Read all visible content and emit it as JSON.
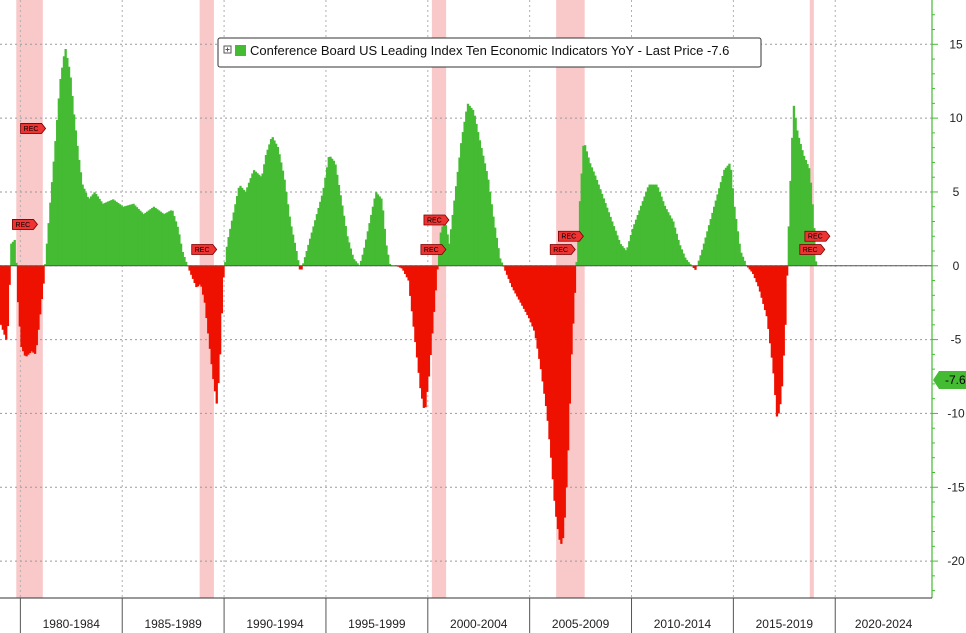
{
  "chart_data": {
    "type": "bar",
    "title": "",
    "legend": {
      "text": "Conference Board US Leading Index Ten Economic Indicators YoY - Last Price -7.6",
      "placement": "top-center"
    },
    "last_price_label": "-7.6",
    "ylim": [
      -22.5,
      18
    ],
    "y_ticks": [
      {
        "value": 15,
        "label": "15"
      },
      {
        "value": 10,
        "label": "10"
      },
      {
        "value": 5,
        "label": "5"
      },
      {
        "value": 0,
        "label": "0"
      },
      {
        "value": -5,
        "label": "-5"
      },
      {
        "value": -10,
        "label": "-10"
      },
      {
        "value": -15,
        "label": "-15"
      },
      {
        "value": -20,
        "label": "-20"
      }
    ],
    "xlim": [
      1979.0,
      2024.75
    ],
    "x_periods": [
      {
        "label": "1980-1984",
        "start": 1980,
        "end": 1985
      },
      {
        "label": "1985-1989",
        "start": 1985,
        "end": 1990
      },
      {
        "label": "1990-1994",
        "start": 1990,
        "end": 1995
      },
      {
        "label": "1995-1999",
        "start": 1995,
        "end": 2000
      },
      {
        "label": "2000-2004",
        "start": 2000,
        "end": 2005
      },
      {
        "label": "2005-2009",
        "start": 2005,
        "end": 2010
      },
      {
        "label": "2010-2014",
        "start": 2010,
        "end": 2015
      },
      {
        "label": "2015-2019",
        "start": 2015,
        "end": 2020
      },
      {
        "label": "2020-2024",
        "start": 2020,
        "end": 2025
      }
    ],
    "recessions": [
      {
        "start": 1979.8,
        "end": 1981.1
      },
      {
        "start": 1988.8,
        "end": 1989.5
      },
      {
        "start": 2000.2,
        "end": 2000.9
      },
      {
        "start": 2006.3,
        "end": 2007.7
      },
      {
        "start": 2018.75,
        "end": 2018.95
      }
    ],
    "rec_markers": [
      {
        "x": 1980.6,
        "y": 9.3,
        "label": "REC"
      },
      {
        "x": 1980.2,
        "y": 2.8,
        "label": "REC"
      },
      {
        "x": 1989.0,
        "y": 1.1,
        "label": "REC"
      },
      {
        "x": 2000.4,
        "y": 3.1,
        "label": "REC"
      },
      {
        "x": 2000.25,
        "y": 1.1,
        "label": "REC"
      },
      {
        "x": 2007.0,
        "y": 2.0,
        "label": "REC"
      },
      {
        "x": 2006.6,
        "y": 1.1,
        "label": "REC"
      },
      {
        "x": 2019.1,
        "y": 2.0,
        "label": "REC"
      },
      {
        "x": 2018.85,
        "y": 1.1,
        "label": "REC"
      }
    ],
    "series": [
      {
        "name": "Conference Board US Leading Index Ten Economic Indicators YoY",
        "positive_color": "#44bb33",
        "negative_color": "#ee1100",
        "points": [
          [
            1979.0,
            -4.0
          ],
          [
            1979.3,
            -5.2
          ],
          [
            1979.5,
            1.5
          ],
          [
            1979.7,
            1.8
          ],
          [
            1979.85,
            -3.0
          ],
          [
            1980.0,
            -5.5
          ],
          [
            1980.2,
            -6.2
          ],
          [
            1980.5,
            -5.8
          ],
          [
            1980.7,
            -6.0
          ],
          [
            1980.9,
            -3.5
          ],
          [
            1981.1,
            -1.0
          ],
          [
            1981.4,
            4.0
          ],
          [
            1981.7,
            9.0
          ],
          [
            1981.9,
            12.5
          ],
          [
            1982.15,
            14.8
          ],
          [
            1982.4,
            13.0
          ],
          [
            1982.6,
            10.0
          ],
          [
            1982.8,
            7.5
          ],
          [
            1983.0,
            5.5
          ],
          [
            1983.3,
            4.5
          ],
          [
            1983.6,
            5.0
          ],
          [
            1984.0,
            4.2
          ],
          [
            1984.5,
            4.5
          ],
          [
            1985.0,
            4.0
          ],
          [
            1985.5,
            4.2
          ],
          [
            1986.0,
            3.5
          ],
          [
            1986.5,
            4.0
          ],
          [
            1987.0,
            3.5
          ],
          [
            1987.4,
            3.8
          ],
          [
            1987.7,
            2.5
          ],
          [
            1987.9,
            1.0
          ],
          [
            1988.1,
            0.2
          ],
          [
            1988.3,
            -0.5
          ],
          [
            1988.6,
            -1.5
          ],
          [
            1988.8,
            -1.2
          ],
          [
            1989.0,
            -2.5
          ],
          [
            1989.2,
            -5.0
          ],
          [
            1989.4,
            -7.5
          ],
          [
            1989.6,
            -9.5
          ],
          [
            1989.75,
            -6.0
          ],
          [
            1989.9,
            -1.0
          ],
          [
            1990.1,
            1.5
          ],
          [
            1990.4,
            3.5
          ],
          [
            1990.7,
            5.5
          ],
          [
            1991.0,
            5.0
          ],
          [
            1991.4,
            6.5
          ],
          [
            1991.8,
            6.0
          ],
          [
            1992.0,
            7.5
          ],
          [
            1992.3,
            8.8
          ],
          [
            1992.6,
            8.0
          ],
          [
            1992.9,
            6.0
          ],
          [
            1993.2,
            3.0
          ],
          [
            1993.5,
            1.0
          ],
          [
            1993.7,
            -0.5
          ],
          [
            1994.0,
            1.0
          ],
          [
            1994.4,
            3.0
          ],
          [
            1994.8,
            5.0
          ],
          [
            1995.1,
            7.5
          ],
          [
            1995.4,
            7.0
          ],
          [
            1995.7,
            4.5
          ],
          [
            1996.0,
            2.0
          ],
          [
            1996.3,
            0.5
          ],
          [
            1996.6,
            0.0
          ],
          [
            1996.8,
            1.0
          ],
          [
            1997.1,
            3.0
          ],
          [
            1997.4,
            5.0
          ],
          [
            1997.7,
            4.5
          ],
          [
            1997.9,
            1.5
          ],
          [
            1998.1,
            0.0
          ],
          [
            1998.4,
            0.0
          ],
          [
            1998.7,
            -0.2
          ],
          [
            1999.0,
            -1.0
          ],
          [
            1999.2,
            -3.5
          ],
          [
            1999.4,
            -6.0
          ],
          [
            1999.6,
            -8.5
          ],
          [
            1999.8,
            -10.0
          ],
          [
            2000.0,
            -7.5
          ],
          [
            2000.2,
            -4.0
          ],
          [
            2000.4,
            -0.5
          ],
          [
            2000.6,
            2.5
          ],
          [
            2000.8,
            3.0
          ],
          [
            2001.0,
            1.5
          ],
          [
            2001.3,
            5.0
          ],
          [
            2001.6,
            8.5
          ],
          [
            2001.9,
            11.0
          ],
          [
            2002.2,
            10.5
          ],
          [
            2002.5,
            8.5
          ],
          [
            2002.9,
            6.0
          ],
          [
            2003.2,
            3.0
          ],
          [
            2003.5,
            0.5
          ],
          [
            2003.8,
            -0.5
          ],
          [
            2004.1,
            -1.5
          ],
          [
            2004.5,
            -2.5
          ],
          [
            2004.9,
            -3.5
          ],
          [
            2005.2,
            -4.5
          ],
          [
            2005.5,
            -7.0
          ],
          [
            2005.8,
            -10.0
          ],
          [
            2006.0,
            -13.0
          ],
          [
            2006.2,
            -16.5
          ],
          [
            2006.4,
            -18.5
          ],
          [
            2006.55,
            -19.0
          ],
          [
            2006.7,
            -16.5
          ],
          [
            2006.85,
            -12.0
          ],
          [
            2007.0,
            -6.0
          ],
          [
            2007.2,
            -1.0
          ],
          [
            2007.4,
            4.0
          ],
          [
            2007.6,
            8.5
          ],
          [
            2007.9,
            7.0
          ],
          [
            2008.2,
            6.0
          ],
          [
            2008.6,
            4.5
          ],
          [
            2009.0,
            3.0
          ],
          [
            2009.4,
            1.5
          ],
          [
            2009.7,
            1.0
          ],
          [
            2010.0,
            2.5
          ],
          [
            2010.4,
            4.0
          ],
          [
            2010.8,
            5.5
          ],
          [
            2011.2,
            5.5
          ],
          [
            2011.6,
            4.0
          ],
          [
            2012.0,
            3.0
          ],
          [
            2012.3,
            1.5
          ],
          [
            2012.6,
            0.5
          ],
          [
            2012.9,
            0.0
          ],
          [
            2013.1,
            -0.3
          ],
          [
            2013.4,
            1.0
          ],
          [
            2013.8,
            3.0
          ],
          [
            2014.2,
            5.0
          ],
          [
            2014.5,
            6.5
          ],
          [
            2014.8,
            7.0
          ],
          [
            2015.0,
            4.0
          ],
          [
            2015.3,
            1.0
          ],
          [
            2015.6,
            0.0
          ],
          [
            2015.9,
            -0.5
          ],
          [
            2016.2,
            -1.5
          ],
          [
            2016.6,
            -3.5
          ],
          [
            2016.9,
            -7.0
          ],
          [
            2017.1,
            -10.5
          ],
          [
            2017.3,
            -9.0
          ],
          [
            2017.5,
            -4.0
          ],
          [
            2017.7,
            4.0
          ],
          [
            2017.9,
            11.0
          ],
          [
            2018.1,
            9.0
          ],
          [
            2018.4,
            7.5
          ],
          [
            2018.7,
            6.5
          ],
          [
            2018.9,
            3.0
          ],
          [
            2019.0,
            0.3
          ]
        ]
      }
    ]
  }
}
